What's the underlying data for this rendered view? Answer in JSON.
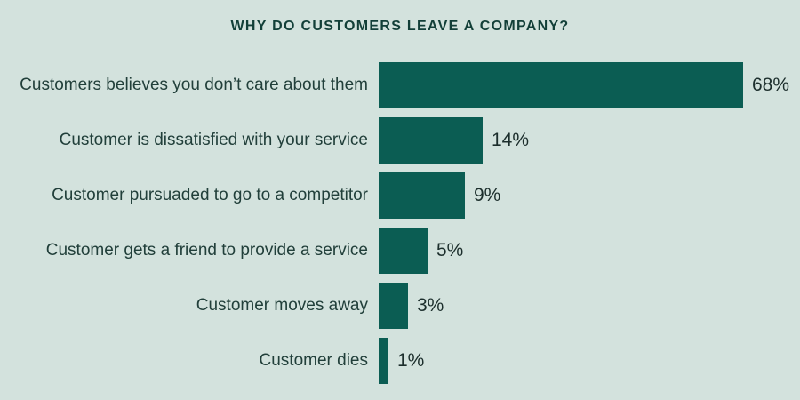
{
  "title": "WHY DO CUSTOMERS LEAVE A COMPANY?",
  "colors": {
    "background": "#d3e2dd",
    "bar": "#0b5d53",
    "title_text": "#123f38",
    "label_text": "#213f3a",
    "value_text": "#1c2e2c"
  },
  "chart_data": {
    "type": "bar",
    "orientation": "horizontal",
    "title": "WHY DO CUSTOMERS LEAVE A COMPANY?",
    "categories": [
      "Customers believes you don’t care about them",
      "Customer is dissatisfied with your service",
      "Customer pursuaded to go to a competitor",
      "Customer gets a friend to provide a service",
      "Customer moves away",
      "Customer dies"
    ],
    "values": [
      68,
      14,
      9,
      5,
      3,
      1
    ],
    "value_labels": [
      "68%",
      "14%",
      "9%",
      "5%",
      "3%",
      "1%"
    ],
    "bar_pixel_widths": [
      410,
      117,
      97,
      55,
      33,
      11
    ],
    "xlabel": "",
    "ylabel": "",
    "grid": false,
    "legend": false,
    "value_label_position": "right-of-bar",
    "category_label_position": "left-of-bar"
  }
}
